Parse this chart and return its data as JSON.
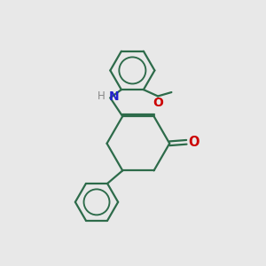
{
  "background_color": "#e8e8e8",
  "bond_color": "#2d6b4a",
  "nitrogen_color": "#2222cc",
  "oxygen_color": "#cc0000",
  "line_width": 1.6,
  "fig_width": 3.0,
  "fig_height": 3.0,
  "dpi": 100,
  "xlim": [
    0,
    10
  ],
  "ylim": [
    0,
    10
  ]
}
